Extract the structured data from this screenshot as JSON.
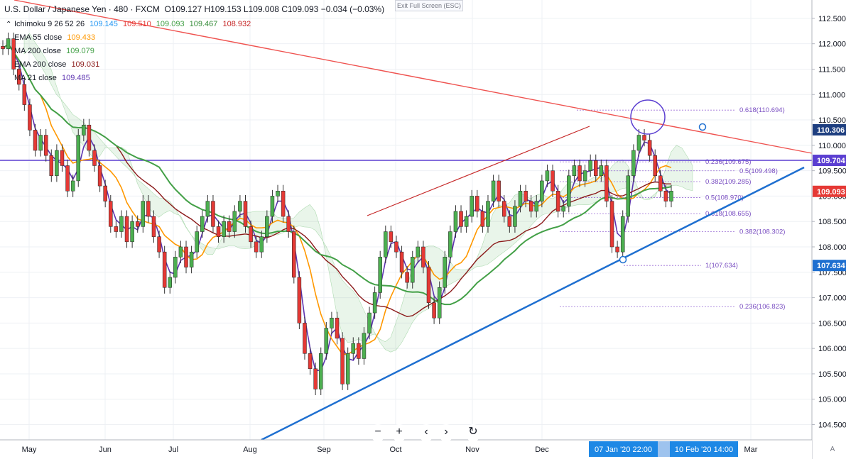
{
  "header": {
    "symbol": "U.S. Dollar / Japanese Yen · 480 · FXCM",
    "open": "O109.127",
    "high": "H109.153",
    "low": "L109.008",
    "close": "C109.093",
    "change": "−0.034 (−0.03%)"
  },
  "indicators": [
    {
      "label": "Ichimoku 9 26 52 26",
      "values": [
        "109.145",
        "109.510",
        "109.093",
        "109.467",
        "108.932"
      ],
      "colors": [
        "#2196f3",
        "#e53935",
        "#43a047",
        "#388e3c",
        "#c62828"
      ]
    },
    {
      "label": "EMA 55 close",
      "values": [
        "109.433"
      ],
      "colors": [
        "#ff9800"
      ]
    },
    {
      "label": "MA 200 close",
      "values": [
        "109.079"
      ],
      "colors": [
        "#43a047"
      ]
    },
    {
      "label": "EMA 200 close",
      "values": [
        "109.031"
      ],
      "colors": [
        "#8b1a1a"
      ]
    },
    {
      "label": "MA 21 close",
      "values": [
        "109.485"
      ],
      "colors": [
        "#5e35b1"
      ]
    }
  ],
  "toolbar": {
    "exit_fullscreen": "Exit Full Screen (ESC)"
  },
  "controls": {
    "zoom_out": "−",
    "zoom_in": "+",
    "back": "‹",
    "forward": "›",
    "reset": "↻"
  },
  "colors": {
    "candle_up": "#4caf50",
    "candle_down": "#e53935",
    "trend_red": "#ef5350",
    "trend_blue": "#1e6fd0",
    "horizontal": "#5b3fd1",
    "fib": "#9c6fd6",
    "ema55": "#ff9800",
    "ma200": "#43a047",
    "ema200": "#8b1a1a",
    "ma21": "#5e35b1"
  },
  "chart_data": {
    "type": "candlestick",
    "ylim": [
      104.2,
      112.75
    ],
    "y_ticks": [
      "104.500",
      "105.000",
      "105.500",
      "106.000",
      "106.500",
      "107.000",
      "107.500",
      "108.000",
      "108.500",
      "109.000",
      "109.500",
      "110.000",
      "110.500",
      "111.000",
      "111.500",
      "112.000",
      "112.500"
    ],
    "x_ticks": [
      "May",
      "Jun",
      "Jul",
      "Aug",
      "Sep",
      "Oct",
      "Nov",
      "Dec",
      "Mar"
    ],
    "time_badges": [
      "07 Jan '20   22:00",
      "10 Feb '20   14:00"
    ],
    "price_labels": [
      {
        "value": 110.306,
        "text": "110.306",
        "color": "#1e3f80"
      },
      {
        "value": 109.704,
        "text": "109.704",
        "color": "#5b3fd1"
      },
      {
        "value": 109.093,
        "text": "109.093",
        "color": "#e53935"
      },
      {
        "value": 107.634,
        "text": "107.634",
        "color": "#1e6fd0"
      }
    ],
    "horizontal_line": 109.704,
    "fib_upper": [
      {
        "ratio_label": "0.618(110.694)",
        "value": 110.694
      },
      {
        "ratio_label": "0.236(109.675)",
        "value": 109.675
      },
      {
        "ratio_label": "0.5(109.498)",
        "value": 109.498
      },
      {
        "ratio_label": "0.382(109.285)",
        "value": 109.285
      },
      {
        "ratio_label": "0.5(108.970)",
        "value": 108.97
      },
      {
        "ratio_label": "0.618(108.655)",
        "value": 108.655
      },
      {
        "ratio_label": "0.382(108.302)",
        "value": 108.302
      },
      {
        "ratio_label": "1(107.634)",
        "value": 107.634
      },
      {
        "ratio_label": "0.236(106.823)",
        "value": 106.823
      }
    ],
    "close_series": [
      111.9,
      112.1,
      111.5,
      111.2,
      110.8,
      110.3,
      109.9,
      110.2,
      109.8,
      109.4,
      109.9,
      109.6,
      109.1,
      109.3,
      110.2,
      110.4,
      109.9,
      109.6,
      109.2,
      108.9,
      108.4,
      108.3,
      108.6,
      108.1,
      108.5,
      108.4,
      108.9,
      108.6,
      108.2,
      107.9,
      107.2,
      107.4,
      107.8,
      108.0,
      107.6,
      107.9,
      108.3,
      108.6,
      108.9,
      108.4,
      108.2,
      108.5,
      108.3,
      108.7,
      108.9,
      108.4,
      108.1,
      107.9,
      108.2,
      108.6,
      109.0,
      109.1,
      108.6,
      108.3,
      107.4,
      106.5,
      105.9,
      105.6,
      105.2,
      105.9,
      106.4,
      106.6,
      106.2,
      105.3,
      105.9,
      106.1,
      105.8,
      106.3,
      106.7,
      107.1,
      107.8,
      108.3,
      108.1,
      107.9,
      107.5,
      107.3,
      107.8,
      108.0,
      107.6,
      106.9,
      106.6,
      107.2,
      107.8,
      108.3,
      108.7,
      108.4,
      108.6,
      109.0,
      108.7,
      108.4,
      108.9,
      109.3,
      108.9,
      108.6,
      108.4,
      108.8,
      109.1,
      108.9,
      108.7,
      108.9,
      109.3,
      109.5,
      109.1,
      108.7,
      108.8,
      109.4,
      109.6,
      109.3,
      109.5,
      109.7,
      109.4,
      109.6,
      108.9,
      108.0,
      107.9,
      108.6,
      109.4,
      109.9,
      110.2,
      110.1,
      109.8,
      109.4,
      109.1,
      108.9,
      109.1
    ]
  }
}
